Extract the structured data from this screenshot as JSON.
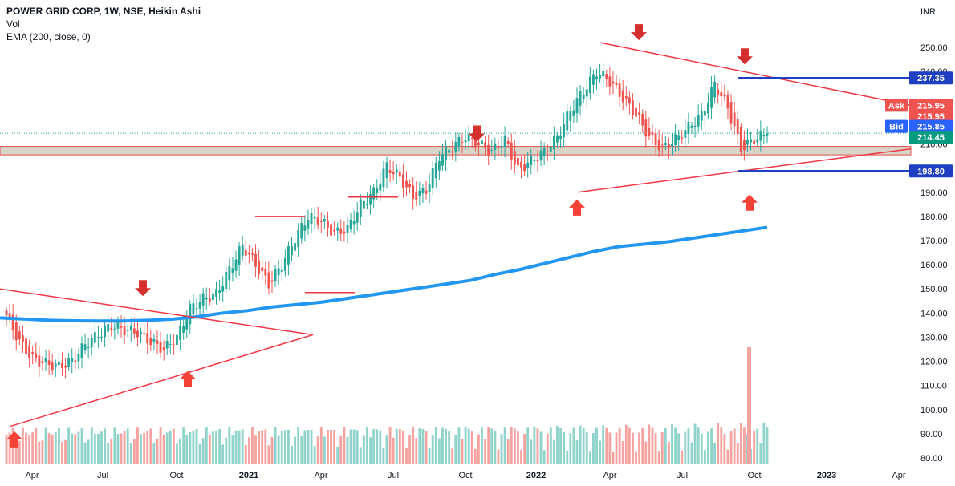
{
  "header": {
    "title": "POWER GRID CORP, 1W, NSE, Heikin Ashi",
    "vol_label": "Vol",
    "ema_label": "EMA (200, close, 0)"
  },
  "currency": "INR",
  "colors": {
    "up": "#26a69a",
    "down": "#ef5350",
    "vol_up": "#8fd3cb",
    "vol_down": "#f5a3a1",
    "ema": "#2196f3",
    "trendline": "#f23645",
    "level": "#1e3fbf",
    "zone": "#d9d4c8"
  },
  "price_tags": [
    {
      "id": "tag-237",
      "label": "",
      "value": "237.35",
      "color": "#1e3fbf"
    },
    {
      "id": "tag-ask",
      "label": "Ask",
      "value": "215.95",
      "color": "#ef5350"
    },
    {
      "id": "tag-last",
      "label": "",
      "value": "215.95",
      "color": "#ef5350"
    },
    {
      "id": "tag-bid",
      "label": "Bid",
      "value": "215.85",
      "color": "#2962ff"
    },
    {
      "id": "tag-close",
      "label": "",
      "value": "214.45",
      "color": "#089981"
    },
    {
      "id": "tag-198",
      "label": "",
      "value": "198.80",
      "color": "#1e3fbf"
    }
  ],
  "chart_data": {
    "type": "candlestick",
    "title": "POWER GRID CORP, 1W, NSE, Heikin Ashi",
    "ylim": [
      77,
      263
    ],
    "y_ticks": [
      80,
      90,
      100,
      110,
      120,
      130,
      140,
      150,
      160,
      170,
      180,
      190,
      200,
      210,
      240,
      250
    ],
    "x_ticks": [
      {
        "label": "Apr",
        "bold": false
      },
      {
        "label": "Jul",
        "bold": false
      },
      {
        "label": "Oct",
        "bold": false
      },
      {
        "label": "2021",
        "bold": true
      },
      {
        "label": "Apr",
        "bold": false
      },
      {
        "label": "Jul",
        "bold": false
      },
      {
        "label": "Oct",
        "bold": false
      },
      {
        "label": "2022",
        "bold": true
      },
      {
        "label": "Apr",
        "bold": false
      },
      {
        "label": "Jul",
        "bold": false
      },
      {
        "label": "Oct",
        "bold": false
      },
      {
        "label": "2023",
        "bold": true
      },
      {
        "label": "Apr",
        "bold": false
      }
    ],
    "levels": [
      237.35,
      198.8
    ],
    "zone": [
      205.5,
      209
    ],
    "ema_200": [
      138,
      137.5,
      137,
      136.8,
      136.7,
      136.7,
      137,
      137.5,
      138.5,
      140,
      141,
      142.5,
      143.5,
      144.5,
      146,
      147.5,
      149,
      150.5,
      152,
      153.5,
      156,
      158,
      160.5,
      163,
      165.5,
      167.5,
      168.5,
      169.5,
      171,
      172.5,
      174,
      175.5
    ],
    "series": [
      {
        "name": "Heikin Ashi",
        "ohlc_closes": [
          139,
          128,
          121,
          119,
          118,
          120,
          127,
          131,
          135,
          133,
          132,
          128,
          125,
          130,
          142,
          146,
          148,
          158,
          168,
          160,
          152,
          160,
          171,
          180,
          178,
          173,
          175,
          185,
          190,
          201,
          196,
          188,
          191,
          205,
          209,
          213,
          210,
          207,
          212,
          199,
          203,
          207,
          213,
          224,
          232,
          240,
          236,
          229,
          222,
          213,
          208,
          212,
          217,
          222,
          235,
          225,
          208,
          212,
          214.45
        ]
      }
    ]
  }
}
